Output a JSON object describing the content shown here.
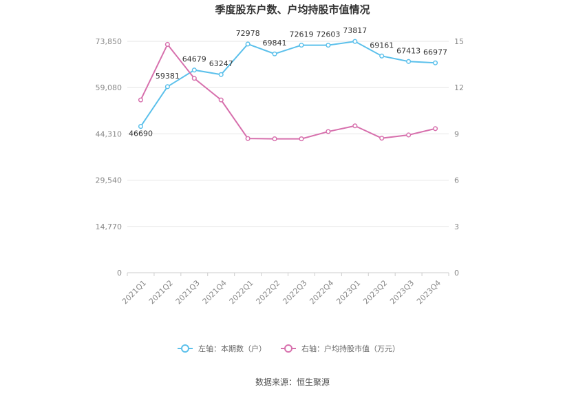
{
  "chart_data": {
    "type": "line",
    "title": "季度股东户数、户均持股市值情况",
    "categories": [
      "2021Q1",
      "2021Q2",
      "2021Q3",
      "2021Q4",
      "2022Q1",
      "2022Q2",
      "2022Q3",
      "2022Q4",
      "2023Q1",
      "2023Q2",
      "2023Q3",
      "2023Q4"
    ],
    "left_axis": {
      "ylim": [
        0,
        73850
      ],
      "ticks": [
        "0",
        "14,770",
        "29,540",
        "44,310",
        "59,080",
        "73,850"
      ]
    },
    "right_axis": {
      "ylim": [
        0,
        15
      ],
      "ticks": [
        "0",
        "3",
        "6",
        "9",
        "12",
        "15"
      ]
    },
    "series": [
      {
        "name": "左轴：本期数（户）",
        "axis": "left",
        "color": "#5bc0eb",
        "values": [
          46690,
          59381,
          64679,
          63247,
          72978,
          69841,
          72619,
          72603,
          73817,
          69161,
          67413,
          66977
        ],
        "labels": [
          "46690",
          "59381",
          "64679",
          "63247",
          "72978",
          "69841",
          "72619",
          "72603",
          "73817",
          "69161",
          "67413",
          "66977"
        ]
      },
      {
        "name": "右轴：户均持股市值（万元）",
        "axis": "right",
        "color": "#d770ad",
        "values": [
          11.2,
          14.8,
          12.6,
          11.2,
          8.7,
          8.68,
          8.68,
          9.15,
          9.52,
          8.72,
          8.93,
          9.34
        ]
      }
    ],
    "grid": true,
    "legend_position": "bottom"
  },
  "source_text": "数据来源：恒生聚源"
}
